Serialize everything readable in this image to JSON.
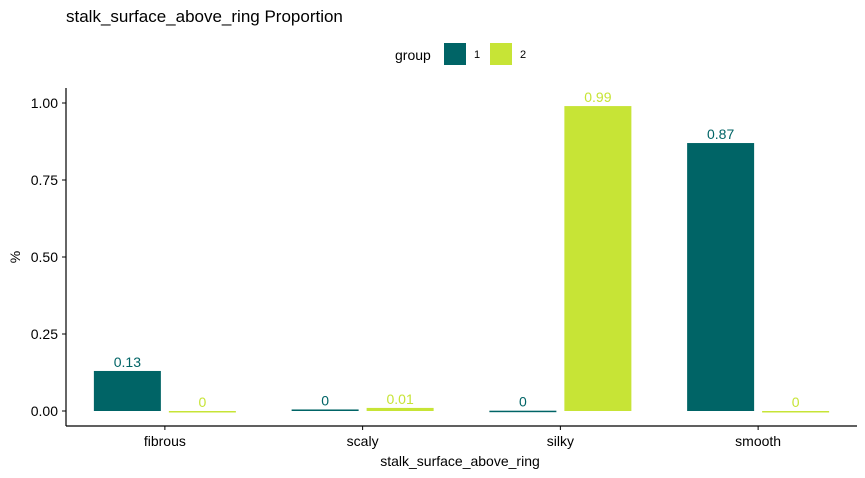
{
  "chart_data": {
    "type": "bar",
    "title": "stalk_surface_above_ring Proportion",
    "xlabel": "stalk_surface_above_ring",
    "ylabel": "%",
    "categories": [
      "fibrous",
      "scaly",
      "silky",
      "smooth"
    ],
    "series": [
      {
        "name": "1",
        "color": "#006466",
        "values": [
          0.13,
          0.005,
          0.001,
          0.87
        ],
        "labels": [
          "0.13",
          "0",
          "0",
          "0.87"
        ]
      },
      {
        "name": "2",
        "color": "#c7e436",
        "values": [
          0.0,
          0.01,
          0.99,
          0.0
        ],
        "labels": [
          "0",
          "0.01",
          "0.99",
          "0"
        ]
      }
    ],
    "ylim": [
      -0.05,
      1.05
    ],
    "yticks": [
      0.0,
      0.25,
      0.5,
      0.75,
      1.0
    ],
    "ytick_labels": [
      "0.00",
      "0.25",
      "0.50",
      "0.75",
      "1.00"
    ],
    "legend": {
      "title": "group",
      "position": "top"
    },
    "grid": false
  }
}
